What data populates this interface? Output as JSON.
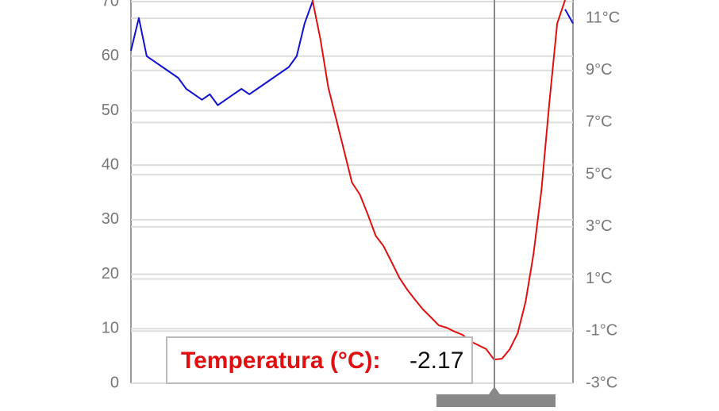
{
  "chart_data": {
    "type": "line",
    "categories": [
      null,
      null,
      null,
      null,
      null,
      null,
      null,
      null,
      null,
      null,
      null,
      null,
      null,
      null,
      null,
      null,
      null,
      null,
      null,
      null,
      null,
      null,
      null,
      null,
      null,
      null,
      null,
      null,
      null,
      null,
      null,
      null,
      null,
      null,
      null,
      null,
      null,
      null,
      null,
      null,
      null,
      null,
      null,
      null,
      null,
      null,
      null,
      null,
      null,
      null,
      null,
      null,
      null,
      null,
      null,
      null,
      null
    ],
    "series": [
      {
        "color": "#1010d0",
        "values": [
          61,
          67,
          60,
          59,
          58,
          57,
          56,
          54,
          53,
          52,
          53,
          51,
          52,
          53,
          54,
          53,
          54,
          55,
          56,
          57,
          58,
          60,
          66,
          70,
          null,
          null,
          null,
          null,
          null,
          null,
          null,
          null,
          null,
          null,
          null,
          null,
          null,
          null,
          null,
          null,
          null,
          null,
          null,
          null,
          null,
          null,
          null,
          null,
          null,
          null,
          null,
          null,
          null,
          null,
          null,
          68.6,
          66
        ]
      },
      {
        "name": "Temperatura (°C):",
        "color": "#e01010",
        "axis": "y2",
        "values": [
          null,
          null,
          null,
          null,
          null,
          null,
          null,
          null,
          null,
          null,
          null,
          null,
          null,
          null,
          null,
          null,
          null,
          null,
          null,
          null,
          null,
          null,
          null,
          11.7,
          10.2,
          8.35,
          7.13,
          5.92,
          4.7,
          4.24,
          3.48,
          2.66,
          2.26,
          1.66,
          1.05,
          0.59,
          0.2,
          -0.17,
          -0.47,
          -0.78,
          -0.87,
          -1.02,
          -1.14,
          -1.39,
          -1.54,
          -1.69,
          -2.09,
          -2.06,
          -1.69,
          -1.08,
          0.13,
          1.96,
          4.39,
          7.74,
          10.8,
          11.7,
          null
        ]
      }
    ],
    "ylim": [
      0,
      70.3
    ],
    "yticks": [
      0,
      10,
      20,
      30,
      40,
      50,
      60,
      70
    ],
    "y2lim": [
      -3,
      11.7
    ],
    "y2ticks": [
      {
        "value": -3,
        "label": "-3°C"
      },
      {
        "value": -1,
        "label": "-1°C"
      },
      {
        "value": 1,
        "label": "1°C"
      },
      {
        "value": 3,
        "label": "3°C"
      },
      {
        "value": 5,
        "label": "5°C"
      },
      {
        "value": 7,
        "label": "7°C"
      },
      {
        "value": 9,
        "label": "9°C"
      },
      {
        "value": 11,
        "label": "11°C"
      }
    ],
    "grid": true,
    "tooltip": {
      "value": -2.17
    }
  }
}
